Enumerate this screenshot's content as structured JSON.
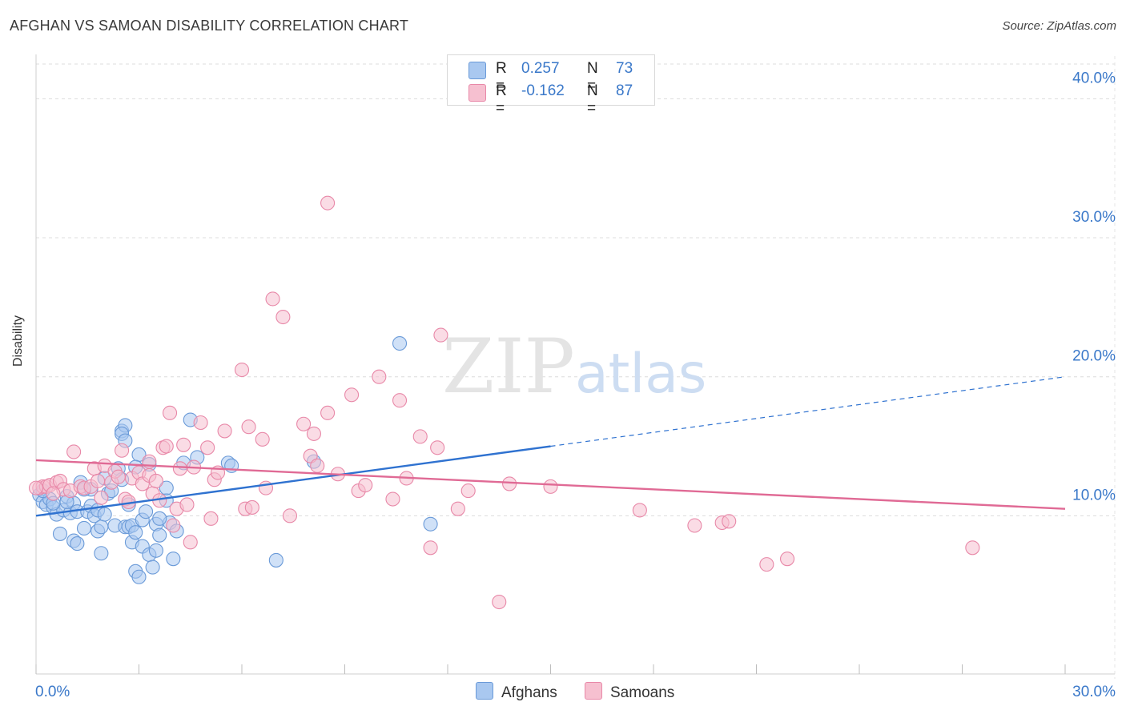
{
  "header": {
    "title": "AFGHAN VS SAMOAN DISABILITY CORRELATION CHART",
    "source": "Source: ZipAtlas.com"
  },
  "watermark": {
    "zip": "ZIP",
    "atlas": "atlas"
  },
  "legend": {
    "rows": [
      {
        "r_label": "R =",
        "r_value": "0.257",
        "n_label": "N =",
        "n_value": "73",
        "color": "#a9c8f0",
        "border": "#6a9ad8"
      },
      {
        "r_label": "R =",
        "r_value": "-0.162",
        "n_label": "N =",
        "n_value": "87",
        "color": "#f6c0d0",
        "border": "#e888a8"
      }
    ]
  },
  "bottom_legend": {
    "afghans": "Afghans",
    "samoans": "Samoans"
  },
  "chart_data": {
    "type": "scatter",
    "title": "AFGHAN VS SAMOAN DISABILITY CORRELATION CHART",
    "xlabel": "",
    "ylabel": "Disability",
    "xlim": [
      0,
      30
    ],
    "ylim": [
      0,
      42.5
    ],
    "x_tick_labels": [
      "0.0%",
      "30.0%"
    ],
    "y_ticks": [
      10,
      20,
      30,
      40
    ],
    "y_tick_labels": [
      "10.0%",
      "20.0%",
      "30.0%",
      "40.0%"
    ],
    "grid": "dashed horizontal",
    "legend_position": "top-center",
    "series": [
      {
        "name": "Afghans",
        "color": "#6a9ad8",
        "fill": "#a9c8f0",
        "trend": {
          "x0": 0,
          "y0": 10.0,
          "x1": 15,
          "y1": 15.0,
          "dashed_to_x": 30,
          "dashed_to_y": 20.0,
          "line_color": "#2f72d0"
        },
        "points": [
          [
            0.1,
            11.5
          ],
          [
            0.2,
            11.0
          ],
          [
            0.3,
            10.8
          ],
          [
            0.4,
            11.2
          ],
          [
            0.5,
            10.6
          ],
          [
            0.6,
            10.1
          ],
          [
            0.7,
            8.7
          ],
          [
            0.8,
            10.4
          ],
          [
            0.9,
            11.4
          ],
          [
            1.0,
            10.2
          ],
          [
            1.1,
            10.9
          ],
          [
            1.2,
            10.3
          ],
          [
            1.1,
            8.2
          ],
          [
            1.2,
            8.0
          ],
          [
            1.3,
            12.4
          ],
          [
            1.4,
            9.1
          ],
          [
            1.5,
            10.3
          ],
          [
            1.6,
            10.7
          ],
          [
            1.6,
            11.9
          ],
          [
            1.7,
            10.0
          ],
          [
            1.8,
            8.9
          ],
          [
            1.8,
            10.4
          ],
          [
            1.9,
            9.2
          ],
          [
            1.9,
            7.3
          ],
          [
            2.0,
            10.1
          ],
          [
            2.1,
            11.6
          ],
          [
            2.2,
            11.8
          ],
          [
            2.3,
            9.3
          ],
          [
            2.4,
            13.4
          ],
          [
            2.5,
            12.6
          ],
          [
            2.6,
            9.2
          ],
          [
            2.7,
            10.8
          ],
          [
            2.7,
            9.2
          ],
          [
            2.8,
            9.3
          ],
          [
            2.5,
            16.1
          ],
          [
            2.6,
            16.5
          ],
          [
            2.5,
            15.9
          ],
          [
            2.6,
            15.4
          ],
          [
            2.8,
            8.1
          ],
          [
            2.9,
            8.8
          ],
          [
            3.0,
            14.4
          ],
          [
            2.9,
            6.0
          ],
          [
            3.0,
            5.6
          ],
          [
            3.1,
            9.7
          ],
          [
            3.1,
            7.8
          ],
          [
            3.2,
            10.3
          ],
          [
            3.3,
            13.7
          ],
          [
            3.3,
            7.2
          ],
          [
            3.4,
            6.3
          ],
          [
            3.5,
            7.5
          ],
          [
            3.5,
            9.4
          ],
          [
            3.6,
            8.6
          ],
          [
            3.8,
            11.1
          ],
          [
            3.8,
            12.0
          ],
          [
            3.9,
            9.5
          ],
          [
            4.0,
            6.9
          ],
          [
            4.1,
            8.9
          ],
          [
            4.3,
            13.8
          ],
          [
            4.5,
            16.9
          ],
          [
            4.7,
            14.2
          ],
          [
            5.6,
            13.8
          ],
          [
            5.7,
            13.6
          ],
          [
            7.0,
            6.8
          ],
          [
            8.1,
            13.9
          ],
          [
            10.6,
            22.4
          ],
          [
            11.5,
            9.4
          ],
          [
            0.2,
            11.8
          ],
          [
            0.5,
            10.9
          ],
          [
            0.9,
            11.0
          ],
          [
            1.4,
            11.9
          ],
          [
            2.0,
            12.7
          ],
          [
            2.9,
            13.5
          ],
          [
            3.6,
            9.8
          ]
        ]
      },
      {
        "name": "Samoans",
        "color": "#e888a8",
        "fill": "#f6c0d0",
        "trend": {
          "x0": 0,
          "y0": 14.0,
          "x1": 30,
          "y1": 10.5,
          "line_color": "#e06a95"
        },
        "points": [
          [
            0.1,
            12.0
          ],
          [
            0.2,
            12.1
          ],
          [
            0.3,
            12.1
          ],
          [
            0.4,
            12.2
          ],
          [
            0.6,
            12.4
          ],
          [
            0.7,
            12.5
          ],
          [
            0.8,
            11.9
          ],
          [
            1.0,
            11.8
          ],
          [
            1.1,
            14.6
          ],
          [
            1.3,
            12.1
          ],
          [
            1.4,
            12.0
          ],
          [
            1.6,
            12.1
          ],
          [
            1.7,
            13.4
          ],
          [
            1.8,
            12.5
          ],
          [
            1.9,
            11.3
          ],
          [
            2.0,
            13.6
          ],
          [
            2.2,
            12.4
          ],
          [
            2.3,
            13.2
          ],
          [
            2.4,
            12.8
          ],
          [
            2.5,
            14.7
          ],
          [
            2.6,
            11.2
          ],
          [
            2.7,
            11.0
          ],
          [
            2.8,
            12.7
          ],
          [
            3.0,
            13.1
          ],
          [
            3.1,
            12.3
          ],
          [
            3.3,
            12.9
          ],
          [
            3.3,
            13.9
          ],
          [
            3.4,
            11.6
          ],
          [
            3.5,
            12.5
          ],
          [
            3.6,
            11.1
          ],
          [
            3.7,
            14.9
          ],
          [
            3.8,
            15.0
          ],
          [
            3.9,
            17.4
          ],
          [
            4.0,
            9.3
          ],
          [
            4.1,
            10.5
          ],
          [
            4.2,
            13.4
          ],
          [
            4.3,
            15.1
          ],
          [
            4.4,
            10.8
          ],
          [
            4.5,
            8.1
          ],
          [
            4.6,
            13.5
          ],
          [
            4.8,
            16.7
          ],
          [
            5.0,
            14.9
          ],
          [
            5.1,
            9.8
          ],
          [
            5.2,
            12.6
          ],
          [
            5.3,
            13.1
          ],
          [
            5.5,
            16.1
          ],
          [
            6.0,
            20.5
          ],
          [
            6.1,
            10.5
          ],
          [
            6.2,
            16.4
          ],
          [
            6.3,
            10.6
          ],
          [
            6.6,
            15.5
          ],
          [
            6.7,
            12.0
          ],
          [
            6.9,
            25.6
          ],
          [
            7.2,
            24.3
          ],
          [
            7.4,
            10.0
          ],
          [
            7.8,
            16.6
          ],
          [
            8.0,
            14.3
          ],
          [
            8.1,
            15.9
          ],
          [
            8.2,
            13.6
          ],
          [
            8.5,
            17.4
          ],
          [
            8.5,
            32.5
          ],
          [
            8.8,
            13.0
          ],
          [
            9.2,
            18.7
          ],
          [
            9.4,
            11.8
          ],
          [
            9.6,
            12.2
          ],
          [
            10.0,
            20.0
          ],
          [
            10.4,
            11.2
          ],
          [
            10.6,
            18.3
          ],
          [
            10.8,
            12.7
          ],
          [
            11.2,
            15.7
          ],
          [
            11.5,
            7.7
          ],
          [
            11.7,
            14.9
          ],
          [
            11.8,
            23.0
          ],
          [
            12.3,
            10.5
          ],
          [
            12.6,
            11.8
          ],
          [
            13.5,
            3.8
          ],
          [
            13.8,
            12.3
          ],
          [
            15.0,
            12.1
          ],
          [
            17.6,
            10.4
          ],
          [
            19.2,
            9.3
          ],
          [
            20.0,
            9.5
          ],
          [
            20.2,
            9.6
          ],
          [
            21.3,
            6.5
          ],
          [
            21.9,
            6.9
          ],
          [
            27.3,
            7.7
          ],
          [
            0.0,
            12.0
          ],
          [
            0.5,
            11.6
          ]
        ]
      }
    ]
  }
}
